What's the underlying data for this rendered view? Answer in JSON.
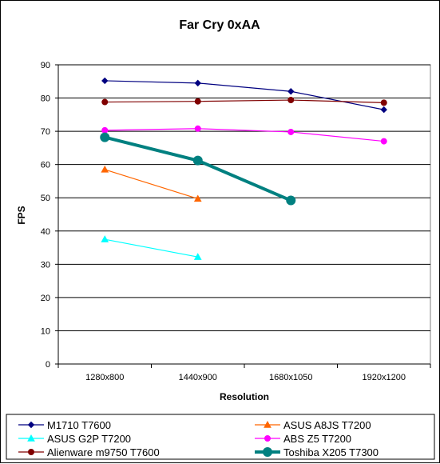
{
  "chart_data": {
    "type": "line",
    "title": "Far Cry 0xAA",
    "xlabel": "Resolution",
    "ylabel": "FPS",
    "categories": [
      "1280x800",
      "1440x900",
      "1680x1050",
      "1920x1200"
    ],
    "ylim": [
      0,
      90
    ],
    "yticks": [
      0,
      10,
      20,
      30,
      40,
      50,
      60,
      70,
      80,
      90
    ],
    "grid": "horizontal",
    "legend_position": "bottom",
    "series": [
      {
        "name": "M1710 T7600",
        "color": "#000080",
        "marker": "diamond",
        "bold": false,
        "values": [
          85.2,
          84.5,
          82.0,
          76.5
        ]
      },
      {
        "name": "ASUS A8JS T7200",
        "color": "#ff6600",
        "marker": "triangle",
        "bold": false,
        "values": [
          58.5,
          49.7,
          null,
          null
        ]
      },
      {
        "name": "ASUS G2P T7200",
        "color": "#00ffff",
        "marker": "triangle",
        "bold": false,
        "values": [
          37.5,
          32.2,
          null,
          null
        ]
      },
      {
        "name": "ABS Z5 T7200",
        "color": "#ff00ff",
        "marker": "circle",
        "bold": false,
        "values": [
          70.3,
          70.8,
          69.8,
          67.0
        ]
      },
      {
        "name": "Alienware m9750 T7600",
        "color": "#800000",
        "marker": "circle",
        "bold": false,
        "values": [
          78.8,
          79.0,
          79.4,
          78.6
        ]
      },
      {
        "name": "Toshiba X205 T7300",
        "color": "#008080",
        "marker": "circle",
        "bold": true,
        "values": [
          68.2,
          61.2,
          49.2,
          null
        ]
      }
    ]
  }
}
